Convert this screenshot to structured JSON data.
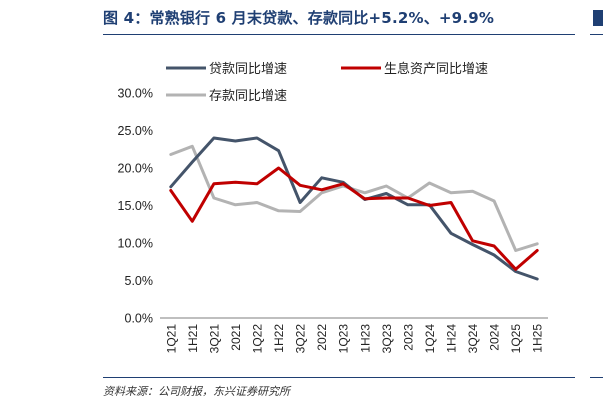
{
  "header": {
    "title": "图 4：常熟银行 6 月末贷款、存款同比+5.2%、+9.9%"
  },
  "footer": {
    "source": "资料来源：公司财报，东兴证券研究所"
  },
  "colors": {
    "title": "#1f3f73",
    "loan": "#44546a",
    "interest_assets": "#c00000",
    "deposit": "#b3b3b3"
  },
  "chart_data": {
    "type": "line",
    "title": "",
    "xlabel": "",
    "ylabel": "",
    "ylim": [
      0,
      30
    ],
    "yticks": [
      "30.0%",
      "25.0%",
      "20.0%",
      "15.0%",
      "10.0%",
      "5.0%",
      "0.0%"
    ],
    "categories": [
      "1Q21",
      "1H21",
      "3Q21",
      "2021",
      "1Q22",
      "1H22",
      "3Q22",
      "2022",
      "1Q23",
      "1H23",
      "3Q23",
      "2023",
      "1Q24",
      "1H24",
      "3Q24",
      "2024",
      "1Q25",
      "1H25"
    ],
    "legend_position": "top-left",
    "grid": false,
    "series": [
      {
        "name": "贷款同比增速",
        "color": "#44546a",
        "values": [
          17.5,
          20.8,
          24.0,
          23.6,
          24.0,
          22.3,
          15.4,
          18.7,
          18.1,
          15.8,
          16.6,
          15.1,
          15.1,
          11.3,
          9.8,
          8.4,
          6.2,
          5.2
        ]
      },
      {
        "name": "生息资产同比增速",
        "color": "#c00000",
        "values": [
          17.0,
          12.9,
          17.9,
          18.1,
          17.9,
          20.0,
          17.7,
          17.1,
          17.9,
          15.9,
          16.0,
          16.0,
          15.0,
          15.4,
          10.3,
          9.6,
          6.5,
          9.0
        ]
      },
      {
        "name": "存款同比增速",
        "color": "#b3b3b3",
        "values": [
          21.8,
          22.9,
          16.0,
          15.1,
          15.4,
          14.3,
          14.2,
          16.7,
          17.6,
          16.7,
          17.6,
          16.0,
          18.0,
          16.7,
          16.9,
          15.6,
          9.0,
          9.9
        ]
      }
    ]
  }
}
